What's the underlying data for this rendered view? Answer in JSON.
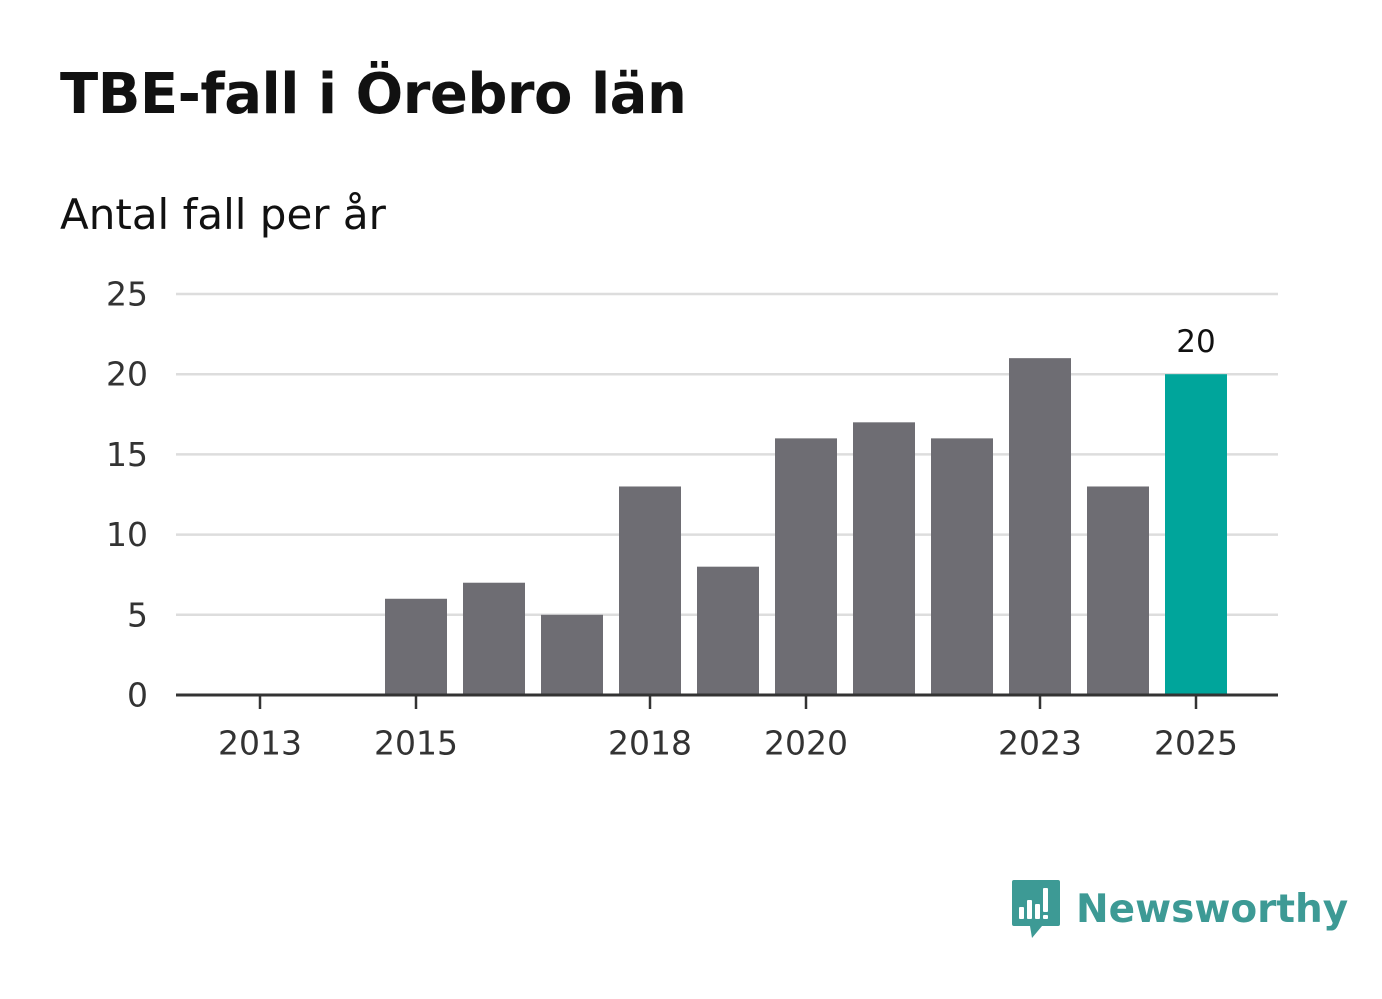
{
  "colors": {
    "bar": "#6e6d73",
    "highlight": "#00a59b",
    "grid": "#dddddd",
    "axis": "#333333",
    "brand": "#3d9a95"
  },
  "brand": {
    "name": "Newsworthy",
    "icon": "bar-chart-speech-bubble-icon"
  },
  "chart_data": {
    "type": "bar",
    "title": "TBE-fall i Örebro län",
    "subtitle": "Antal fall per år",
    "xlabel": "",
    "ylabel": "",
    "ylim": [
      0,
      25
    ],
    "yticks": [
      0,
      5,
      10,
      15,
      20,
      25
    ],
    "xtick_labels": [
      "2013",
      "2015",
      "2018",
      "2020",
      "2023",
      "2025"
    ],
    "categories": [
      "2013",
      "2014",
      "2015",
      "2016",
      "2017",
      "2018",
      "2019",
      "2020",
      "2021",
      "2022",
      "2023",
      "2024",
      "2025"
    ],
    "values": [
      0,
      0,
      6,
      7,
      5,
      13,
      8,
      16,
      17,
      16,
      21,
      13,
      20
    ],
    "highlight": "2025",
    "highlight_label": "20",
    "grid": true,
    "legend": "none"
  }
}
